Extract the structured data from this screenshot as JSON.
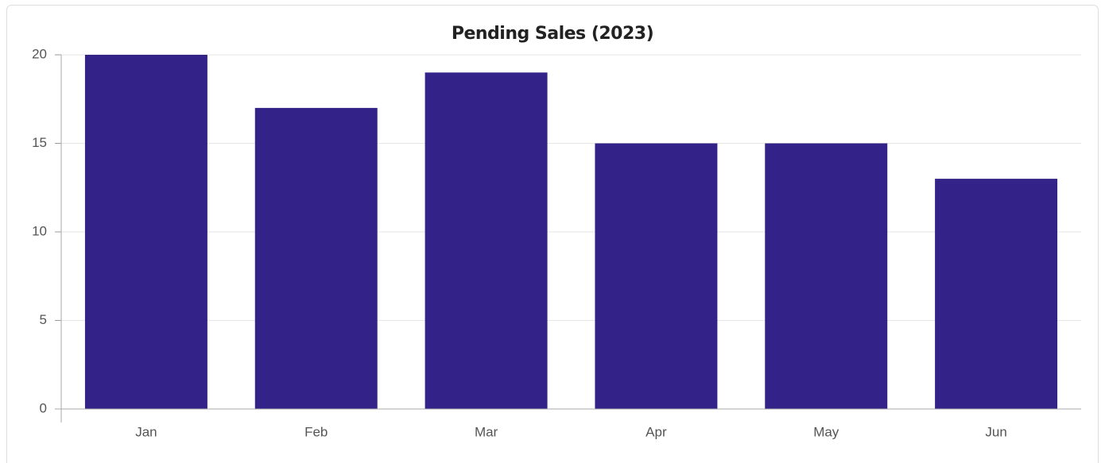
{
  "chart_data": {
    "type": "bar",
    "title": "Pending Sales (2023)",
    "categories": [
      "Jan",
      "Feb",
      "Mar",
      "Apr",
      "May",
      "Jun"
    ],
    "values": [
      20,
      17,
      19,
      15,
      15,
      13
    ],
    "color": "#332287",
    "ylim": [
      0,
      20
    ],
    "yticks": [
      0,
      5,
      10,
      15,
      20
    ],
    "grid": true
  }
}
